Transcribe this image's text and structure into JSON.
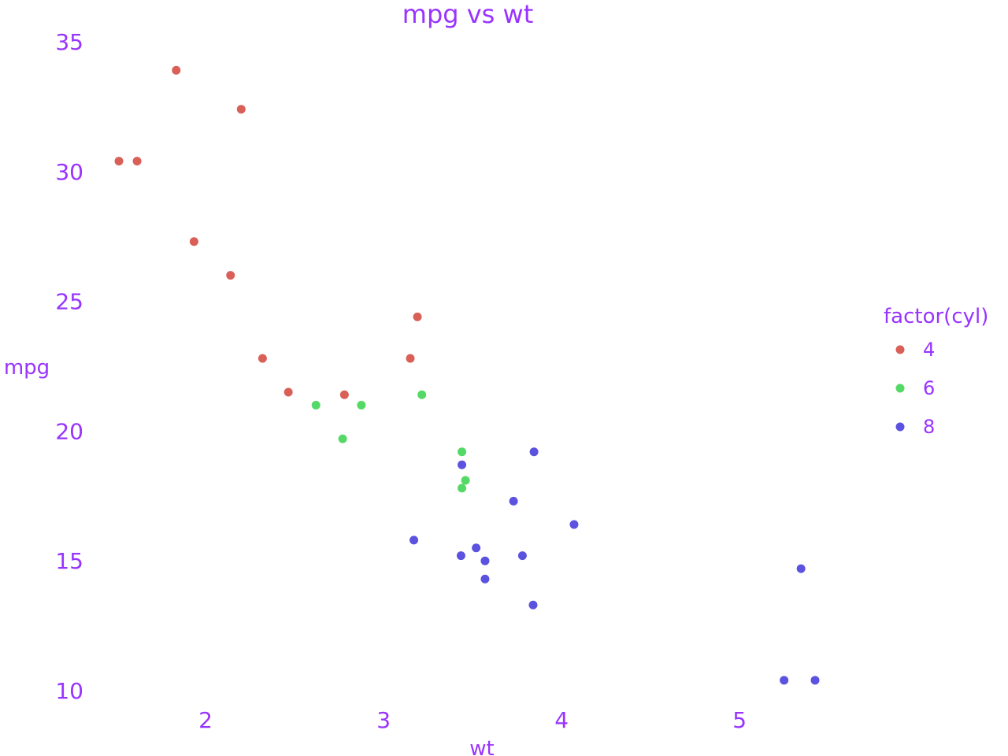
{
  "colors": {
    "text": "#9933ff",
    "series": {
      "4": "#d95f57",
      "6": "#55d966",
      "8": "#5b52e0"
    },
    "background": "#ffffff"
  },
  "chart_data": {
    "type": "scatter",
    "title": "mpg vs wt",
    "xlabel": "wt",
    "ylabel": "mpg",
    "xlim": [
      1.3,
      5.7
    ],
    "ylim": [
      9.5,
      35.5
    ],
    "xticks": [
      "2",
      "3",
      "4",
      "5"
    ],
    "yticks": [
      "10",
      "15",
      "20",
      "25",
      "30",
      "35"
    ],
    "grid": false,
    "legend": {
      "title": "factor(cyl)",
      "position": "right"
    },
    "series": [
      {
        "name": "4",
        "color": "#d95f57",
        "points": [
          [
            2.32,
            22.8
          ],
          [
            3.19,
            24.4
          ],
          [
            3.15,
            22.8
          ],
          [
            2.2,
            32.4
          ],
          [
            1.615,
            30.4
          ],
          [
            1.835,
            33.9
          ],
          [
            2.465,
            21.5
          ],
          [
            1.935,
            27.3
          ],
          [
            2.14,
            26.0
          ],
          [
            1.513,
            30.4
          ],
          [
            2.78,
            21.4
          ]
        ]
      },
      {
        "name": "6",
        "color": "#55d966",
        "points": [
          [
            2.62,
            21.0
          ],
          [
            2.875,
            21.0
          ],
          [
            3.215,
            21.4
          ],
          [
            3.46,
            18.1
          ],
          [
            3.44,
            19.2
          ],
          [
            3.44,
            17.8
          ],
          [
            2.77,
            19.7
          ]
        ]
      },
      {
        "name": "8",
        "color": "#5b52e0",
        "points": [
          [
            3.44,
            18.7
          ],
          [
            3.57,
            14.3
          ],
          [
            4.07,
            16.4
          ],
          [
            3.73,
            17.3
          ],
          [
            3.78,
            15.2
          ],
          [
            5.25,
            10.4
          ],
          [
            5.424,
            10.4
          ],
          [
            5.345,
            14.7
          ],
          [
            3.52,
            15.5
          ],
          [
            3.435,
            15.2
          ],
          [
            3.84,
            13.3
          ],
          [
            3.845,
            19.2
          ],
          [
            3.17,
            15.8
          ],
          [
            3.57,
            15.0
          ]
        ]
      }
    ]
  }
}
